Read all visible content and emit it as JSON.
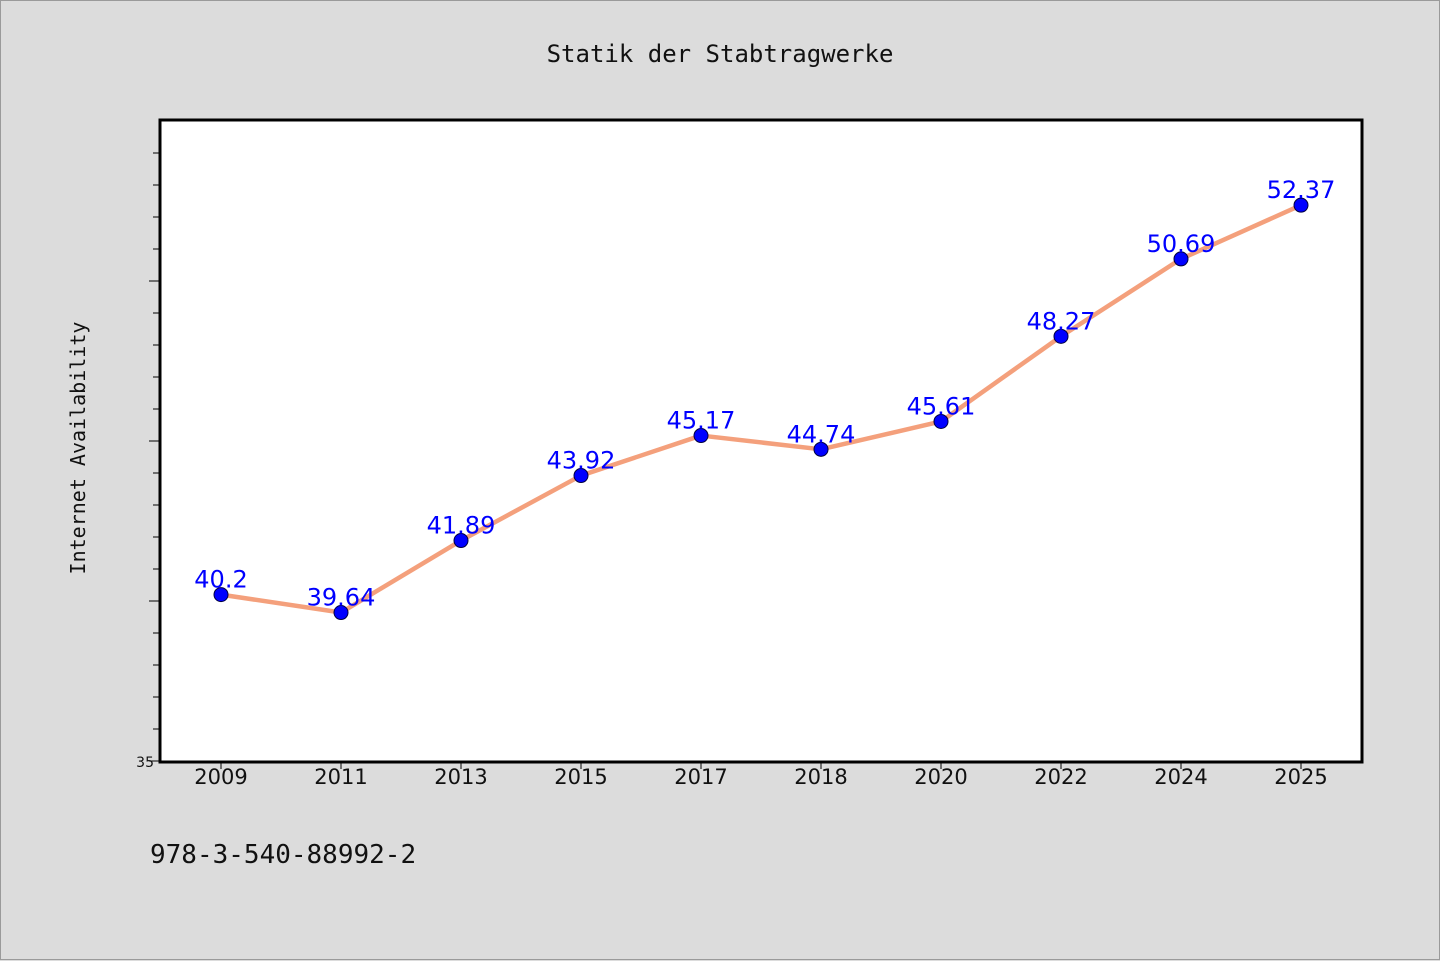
{
  "chart_data": {
    "type": "line",
    "title": "Statik der Stabtragwerke",
    "xlabel": "",
    "ylabel": "Internet Availability",
    "categories": [
      "2009",
      "2011",
      "2013",
      "2015",
      "2017",
      "2018",
      "2020",
      "2022",
      "2024",
      "2025"
    ],
    "series": [
      {
        "values": [
          40.2,
          39.64,
          41.89,
          43.92,
          45.17,
          44.74,
          45.61,
          48.27,
          50.69,
          52.37
        ],
        "labels": [
          "40.2",
          "39.64",
          "41.89",
          "43.92",
          "45.17",
          "44.74",
          "45.61",
          "48.27",
          "50.69",
          "52.37"
        ]
      }
    ],
    "ylim": [
      35,
      55
    ],
    "ytick_labels": [
      "35"
    ],
    "grid": false,
    "line_color": "#f4a07c",
    "marker_color": "#0000ff",
    "label_color": "#0000ff",
    "background_color": "#dcdcdc",
    "plot_background_color": "#ffffff"
  },
  "annotation": "978-3-540-88992-2"
}
